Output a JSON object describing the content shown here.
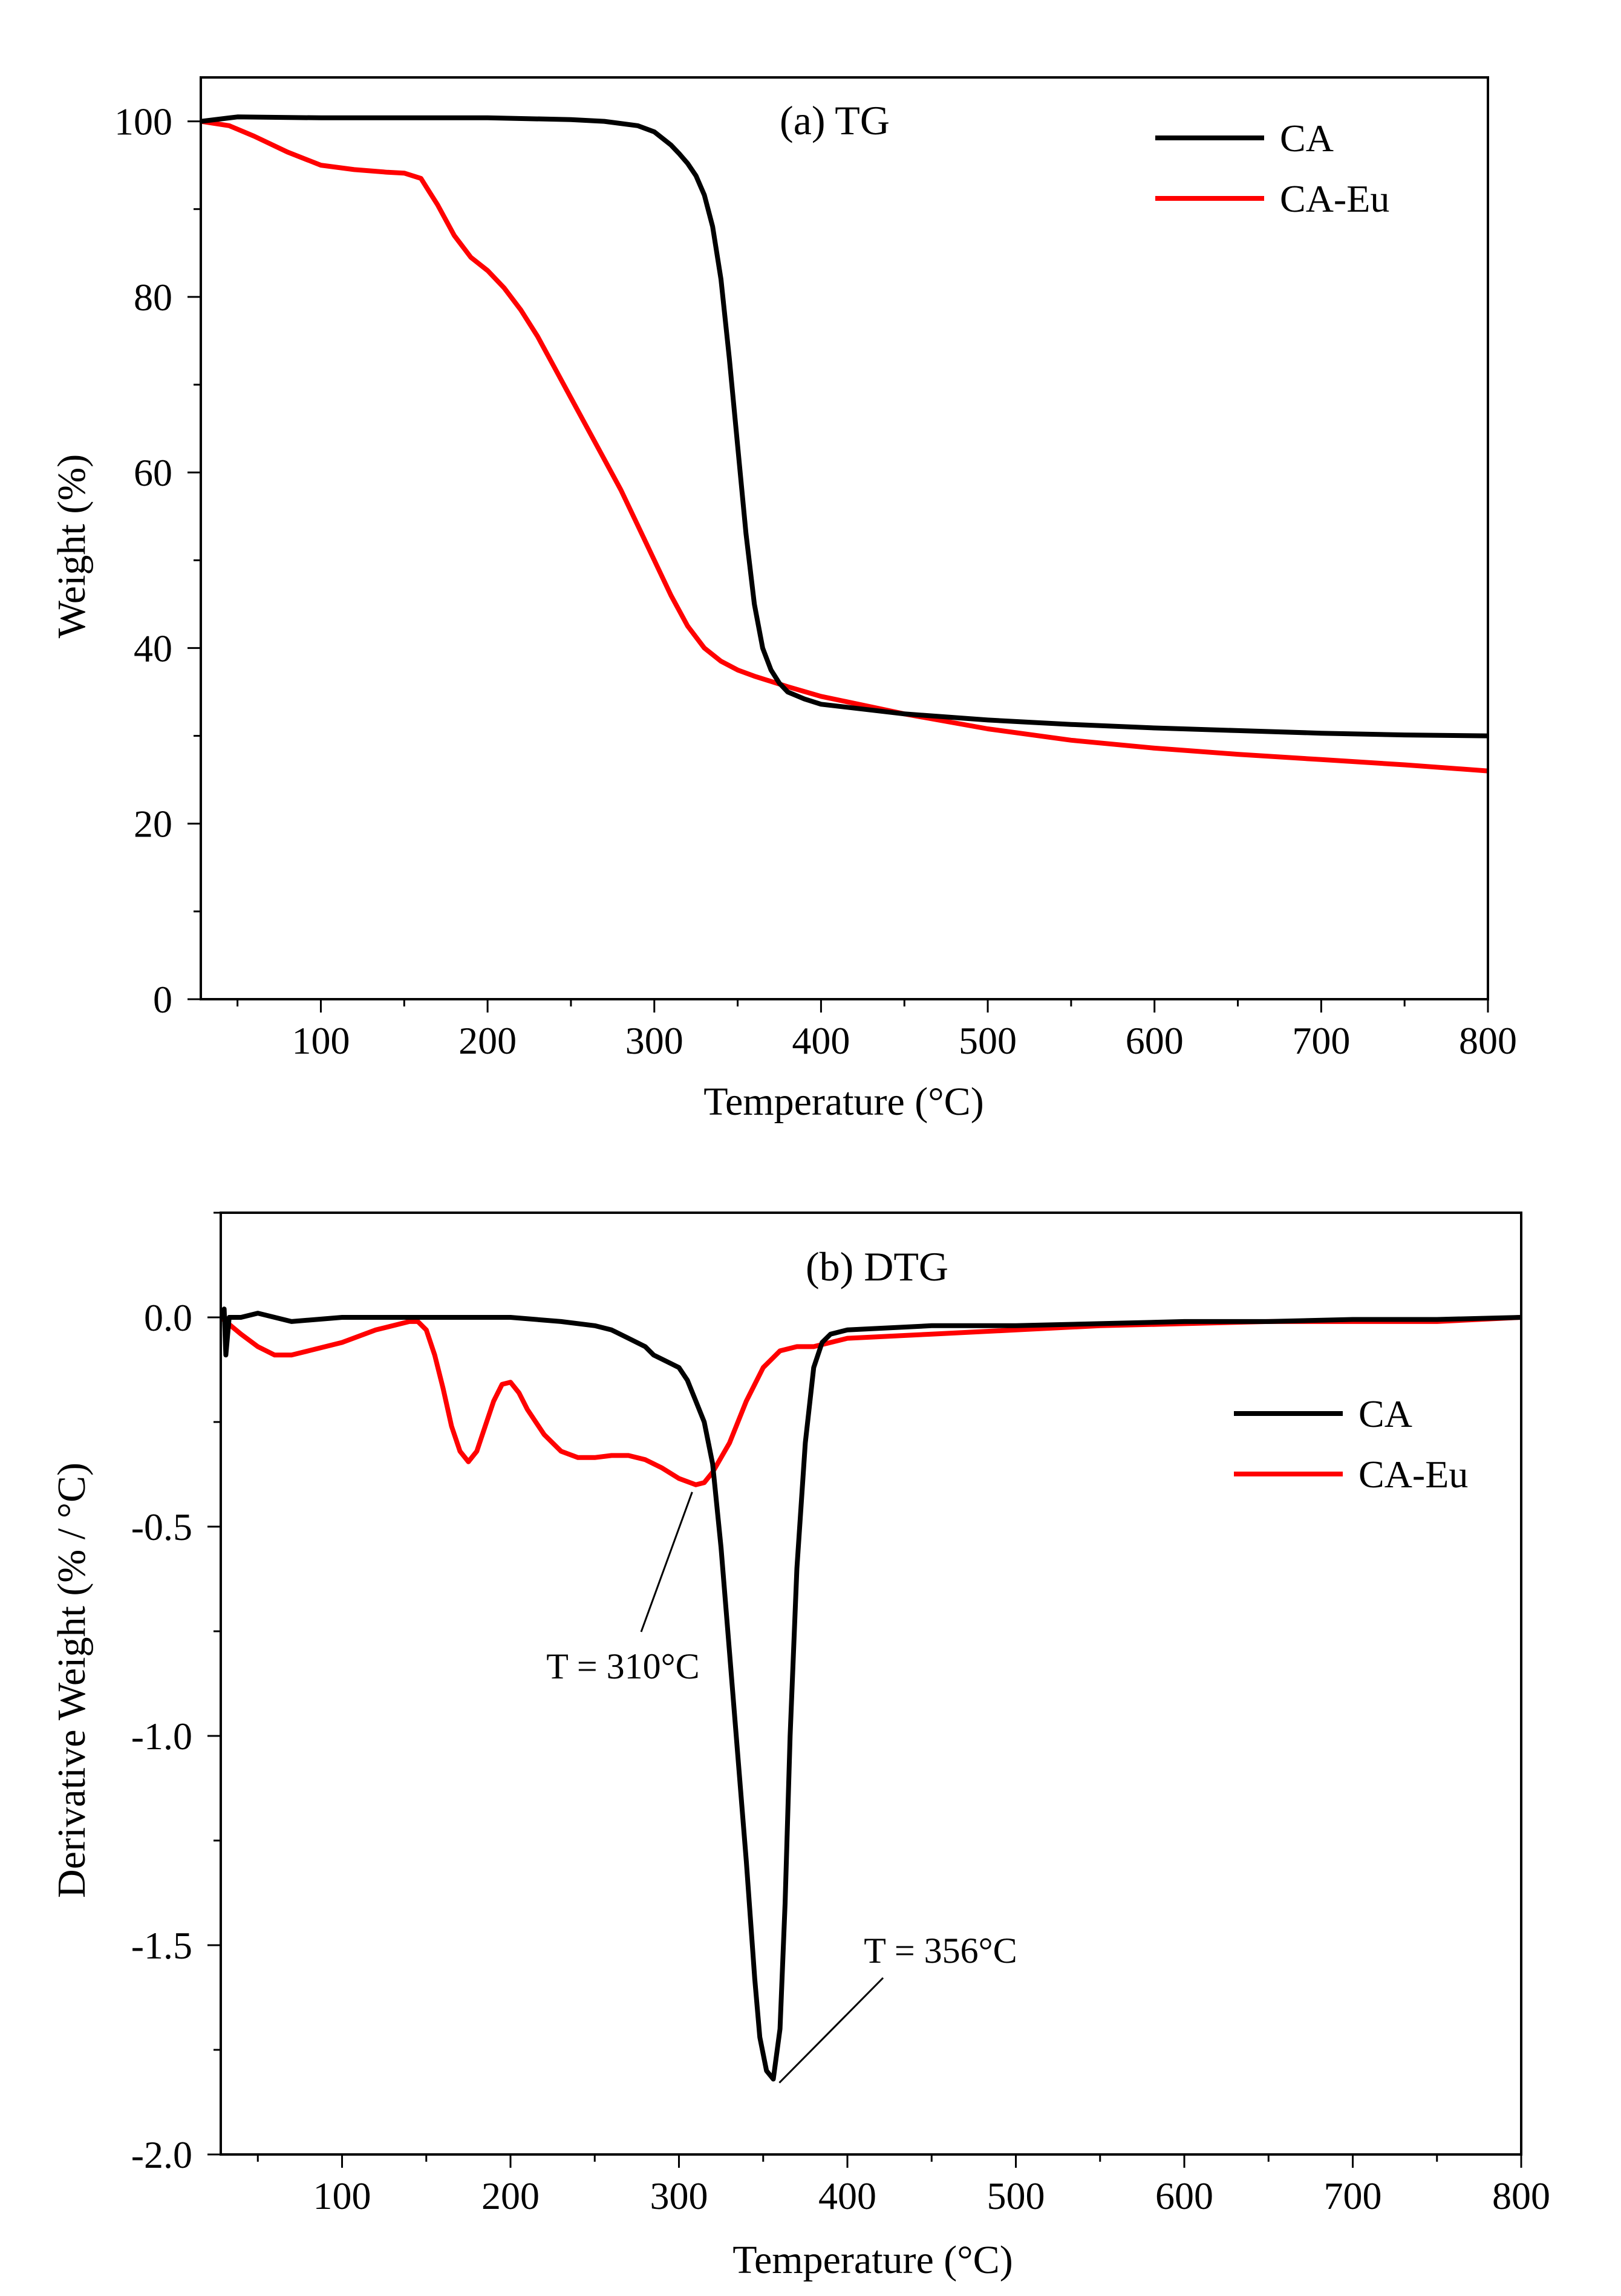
{
  "chart_data": [
    {
      "type": "line",
      "title": "(a)  TG",
      "xlabel": "Temperature (°C)",
      "ylabel": "Weight (%)",
      "xlim": [
        28,
        800
      ],
      "ylim": [
        0,
        105
      ],
      "xticks": [
        100,
        200,
        300,
        400,
        500,
        600,
        700,
        800
      ],
      "xtick_labels": [
        "100",
        "200",
        "300",
        "400",
        "500",
        "600",
        "700",
        "800"
      ],
      "yticks": [
        0,
        20,
        40,
        60,
        80,
        100
      ],
      "ytick_labels": [
        "0",
        "20",
        "40",
        "60",
        "80",
        "100"
      ],
      "legend_position": "top-right",
      "series": [
        {
          "name": "CA",
          "color": "#000000",
          "x": [
            28,
            50,
            100,
            150,
            200,
            250,
            270,
            290,
            300,
            310,
            315,
            320,
            325,
            330,
            335,
            340,
            345,
            350,
            355,
            360,
            365,
            370,
            375,
            380,
            385,
            390,
            400,
            450,
            500,
            550,
            600,
            650,
            700,
            750,
            800
          ],
          "y": [
            100.0,
            100.5,
            100.4,
            100.4,
            100.4,
            100.2,
            100.0,
            99.5,
            98.8,
            97.3,
            96.3,
            95.2,
            93.8,
            91.6,
            88.0,
            82.0,
            73.0,
            63.0,
            53.0,
            45.0,
            40.0,
            37.5,
            36.0,
            35.0,
            34.6,
            34.2,
            33.6,
            32.5,
            31.8,
            31.3,
            30.9,
            30.6,
            30.3,
            30.1,
            30.0
          ]
        },
        {
          "name": "CA-Eu",
          "color": "#ff0000",
          "x": [
            28,
            45,
            60,
            80,
            100,
            120,
            140,
            150,
            160,
            165,
            170,
            180,
            190,
            200,
            210,
            220,
            230,
            240,
            250,
            260,
            270,
            280,
            290,
            300,
            310,
            320,
            330,
            340,
            350,
            360,
            370,
            380,
            400,
            430,
            450,
            500,
            550,
            600,
            650,
            700,
            750,
            800
          ],
          "y": [
            100.0,
            99.5,
            98.3,
            96.5,
            95.0,
            94.5,
            94.2,
            94.1,
            93.5,
            92.0,
            90.5,
            87.0,
            84.5,
            83.0,
            81.0,
            78.5,
            75.5,
            72.0,
            68.5,
            65.0,
            61.5,
            58.0,
            54.0,
            50.0,
            46.0,
            42.5,
            40.0,
            38.5,
            37.5,
            36.8,
            36.2,
            35.6,
            34.5,
            33.3,
            32.5,
            30.8,
            29.5,
            28.6,
            27.9,
            27.3,
            26.7,
            26.0
          ]
        }
      ]
    },
    {
      "type": "line",
      "title": "(b)  DTG",
      "xlabel": "Temperature (°C)",
      "ylabel": "Derivative Weight (% / °C)",
      "xlim": [
        28,
        800
      ],
      "ylim": [
        -2.0,
        0.25
      ],
      "xticks": [
        100,
        200,
        300,
        400,
        500,
        600,
        700,
        800
      ],
      "xtick_labels": [
        "100",
        "200",
        "300",
        "400",
        "500",
        "600",
        "700",
        "800"
      ],
      "yticks": [
        -2.0,
        -1.5,
        -1.0,
        -0.5,
        0.0
      ],
      "ytick_labels": [
        "-2.0",
        "-1.5",
        "-1.0",
        "-0.5",
        "0.0"
      ],
      "legend_position": "right",
      "annotations": [
        {
          "text": "T = 310°C",
          "x": 310,
          "y": -0.4
        },
        {
          "text": "T = 356°C",
          "x": 356,
          "y": -1.82
        }
      ],
      "series": [
        {
          "name": "CA",
          "color": "#000000",
          "x": [
            28,
            30,
            31,
            33,
            40,
            50,
            70,
            100,
            150,
            200,
            230,
            250,
            260,
            270,
            280,
            285,
            290,
            295,
            300,
            305,
            310,
            315,
            320,
            325,
            330,
            335,
            340,
            345,
            348,
            352,
            356,
            360,
            363,
            366,
            370,
            375,
            380,
            385,
            390,
            400,
            450,
            500,
            550,
            600,
            650,
            700,
            750,
            800
          ],
          "y": [
            0.0,
            0.02,
            -0.09,
            0.0,
            0.0,
            0.01,
            -0.01,
            0.0,
            0.0,
            0.0,
            -0.01,
            -0.02,
            -0.03,
            -0.05,
            -0.07,
            -0.09,
            -0.1,
            -0.11,
            -0.12,
            -0.15,
            -0.2,
            -0.25,
            -0.35,
            -0.55,
            -0.8,
            -1.05,
            -1.3,
            -1.58,
            -1.72,
            -1.8,
            -1.82,
            -1.7,
            -1.4,
            -1.0,
            -0.6,
            -0.3,
            -0.12,
            -0.06,
            -0.04,
            -0.03,
            -0.02,
            -0.02,
            -0.015,
            -0.01,
            -0.01,
            -0.005,
            -0.005,
            0.0
          ]
        },
        {
          "name": "CA-Eu",
          "color": "#ff0000",
          "x": [
            28,
            40,
            50,
            60,
            70,
            80,
            100,
            120,
            140,
            145,
            150,
            155,
            160,
            165,
            170,
            175,
            180,
            185,
            190,
            195,
            200,
            205,
            210,
            220,
            230,
            240,
            250,
            260,
            270,
            280,
            290,
            300,
            310,
            315,
            320,
            330,
            340,
            350,
            360,
            370,
            380,
            390,
            400,
            450,
            500,
            550,
            600,
            650,
            700,
            750,
            800
          ],
          "y": [
            0.0,
            -0.04,
            -0.07,
            -0.09,
            -0.09,
            -0.08,
            -0.06,
            -0.03,
            -0.01,
            -0.01,
            -0.03,
            -0.09,
            -0.17,
            -0.26,
            -0.32,
            -0.345,
            -0.32,
            -0.26,
            -0.2,
            -0.16,
            -0.155,
            -0.18,
            -0.22,
            -0.28,
            -0.32,
            -0.335,
            -0.335,
            -0.33,
            -0.33,
            -0.34,
            -0.36,
            -0.385,
            -0.4,
            -0.395,
            -0.37,
            -0.3,
            -0.2,
            -0.12,
            -0.08,
            -0.07,
            -0.07,
            -0.06,
            -0.05,
            -0.04,
            -0.03,
            -0.02,
            -0.015,
            -0.01,
            -0.01,
            -0.01,
            0.0
          ]
        }
      ]
    }
  ]
}
